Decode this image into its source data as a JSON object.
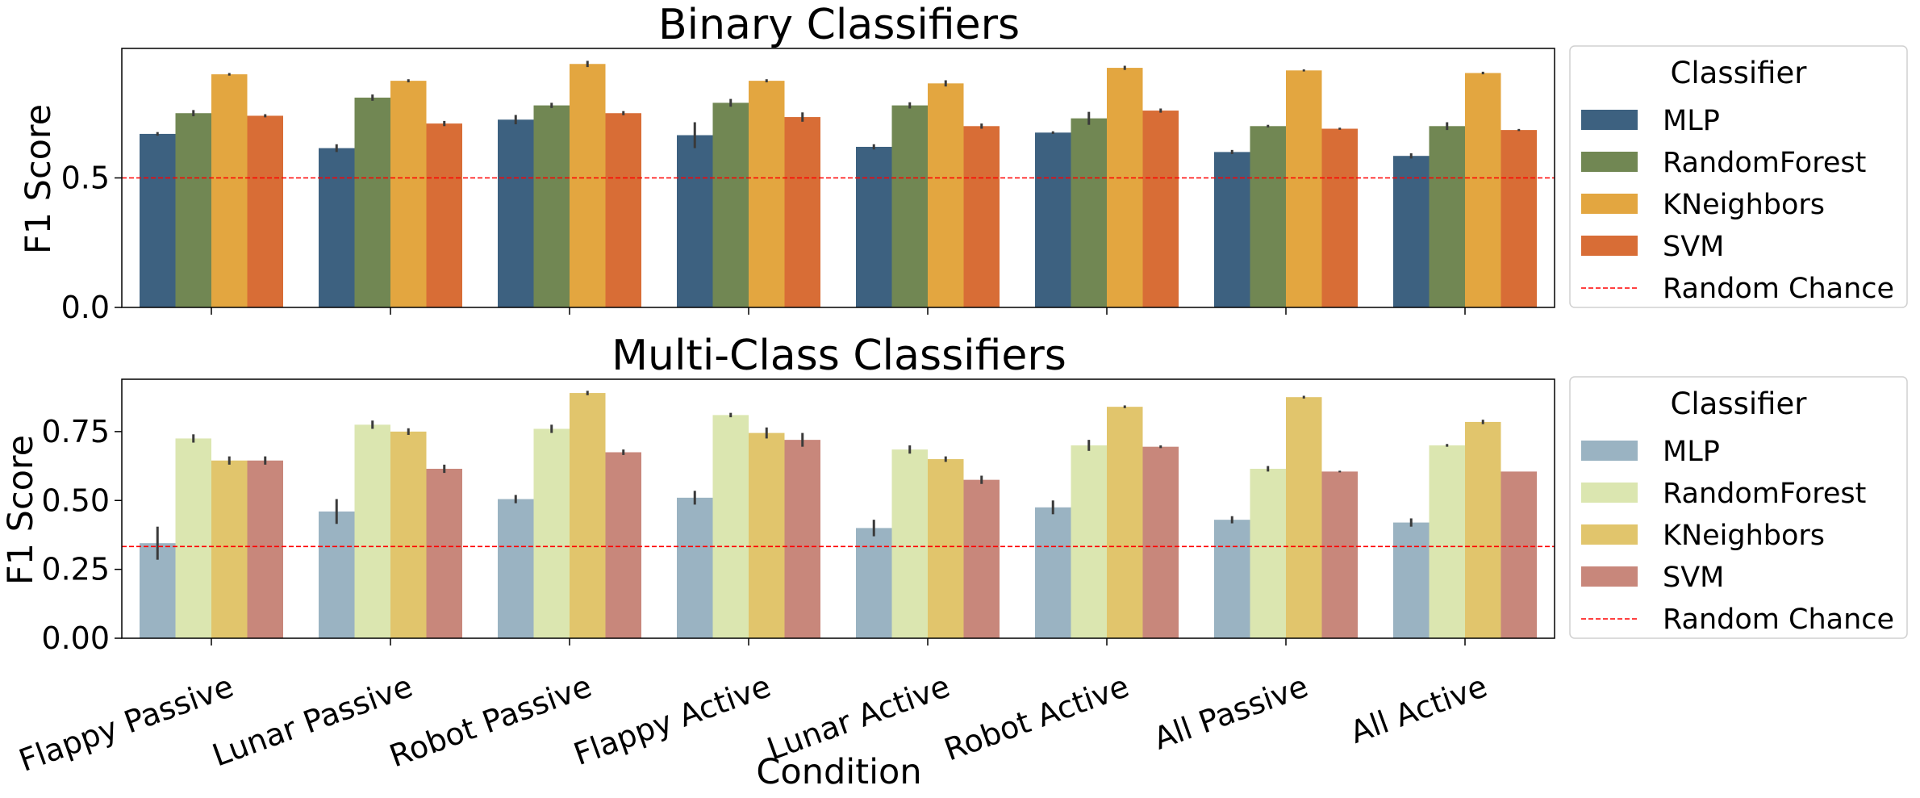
{
  "chart_data": [
    {
      "type": "bar",
      "title": "Binary Classifiers",
      "xlabel": "",
      "ylabel": "F1 Score",
      "ylim": [
        0,
        1.0
      ],
      "yticks": [
        "0.0",
        "0.5"
      ],
      "ytick_values": [
        0.0,
        0.5
      ],
      "categories": [
        "Flappy Passive",
        "Lunar Passive",
        "Robot Passive",
        "Flappy Active",
        "Lunar Active",
        "Robot Active",
        "All Passive",
        "All Active"
      ],
      "series": [
        {
          "name": "MLP",
          "color": "#3d6180",
          "values": [
            0.67,
            0.615,
            0.725,
            0.665,
            0.62,
            0.675,
            0.6,
            0.585
          ],
          "errors": [
            0.007,
            0.015,
            0.018,
            0.05,
            0.01,
            0.005,
            0.008,
            0.01
          ]
        },
        {
          "name": "RandomForest",
          "color": "#718753",
          "values": [
            0.75,
            0.81,
            0.78,
            0.79,
            0.78,
            0.73,
            0.7,
            0.7
          ],
          "errors": [
            0.012,
            0.012,
            0.01,
            0.015,
            0.012,
            0.025,
            0.005,
            0.015
          ]
        },
        {
          "name": "KNeighbors",
          "color": "#e3a640",
          "values": [
            0.9,
            0.875,
            0.94,
            0.875,
            0.865,
            0.925,
            0.915,
            0.905
          ],
          "errors": [
            0.005,
            0.006,
            0.012,
            0.006,
            0.012,
            0.008,
            0.004,
            0.005
          ]
        },
        {
          "name": "SVM",
          "color": "#d86d36",
          "values": [
            0.74,
            0.71,
            0.75,
            0.735,
            0.7,
            0.76,
            0.69,
            0.685
          ],
          "errors": [
            0.006,
            0.01,
            0.008,
            0.018,
            0.01,
            0.008,
            0.004,
            0.004
          ]
        }
      ],
      "reference_line": {
        "name": "Random Chance",
        "value": 0.5,
        "color": "#ff0000",
        "style": "dashed"
      },
      "legend": {
        "title": "Classifier",
        "placement": "outside-right"
      }
    },
    {
      "type": "bar",
      "title": "Multi-Class Classifiers",
      "xlabel": "Condition",
      "ylabel": "F1 Score",
      "ylim": [
        0,
        0.94
      ],
      "yticks": [
        "0.00",
        "0.25",
        "0.50",
        "0.75"
      ],
      "ytick_values": [
        0.0,
        0.25,
        0.5,
        0.75
      ],
      "categories": [
        "Flappy Passive",
        "Lunar Passive",
        "Robot Passive",
        "Flappy Active",
        "Lunar Active",
        "Robot Active",
        "All Passive",
        "All Active"
      ],
      "series": [
        {
          "name": "MLP",
          "color": "#9ab3c2",
          "values": [
            0.345,
            0.46,
            0.505,
            0.51,
            0.4,
            0.475,
            0.43,
            0.42
          ],
          "errors": [
            0.06,
            0.045,
            0.015,
            0.025,
            0.03,
            0.025,
            0.013,
            0.015
          ]
        },
        {
          "name": "RandomForest",
          "color": "#dbe6b0",
          "values": [
            0.725,
            0.775,
            0.76,
            0.81,
            0.685,
            0.7,
            0.615,
            0.7
          ],
          "errors": [
            0.015,
            0.015,
            0.015,
            0.008,
            0.015,
            0.02,
            0.01,
            0.005
          ]
        },
        {
          "name": "KNeighbors",
          "color": "#e1c56c",
          "values": [
            0.645,
            0.75,
            0.89,
            0.745,
            0.65,
            0.84,
            0.875,
            0.785
          ],
          "errors": [
            0.015,
            0.012,
            0.008,
            0.02,
            0.01,
            0.005,
            0.005,
            0.008
          ]
        },
        {
          "name": "SVM",
          "color": "#c8877b",
          "values": [
            0.645,
            0.615,
            0.675,
            0.72,
            0.575,
            0.695,
            0.605,
            0.605
          ],
          "errors": [
            0.015,
            0.015,
            0.01,
            0.025,
            0.015,
            0.005,
            0.003,
            0.0
          ]
        }
      ],
      "reference_line": {
        "name": "Random Chance",
        "value": 0.333,
        "color": "#ff0000",
        "style": "dashed"
      },
      "legend": {
        "title": "Classifier",
        "placement": "outside-right"
      }
    }
  ]
}
